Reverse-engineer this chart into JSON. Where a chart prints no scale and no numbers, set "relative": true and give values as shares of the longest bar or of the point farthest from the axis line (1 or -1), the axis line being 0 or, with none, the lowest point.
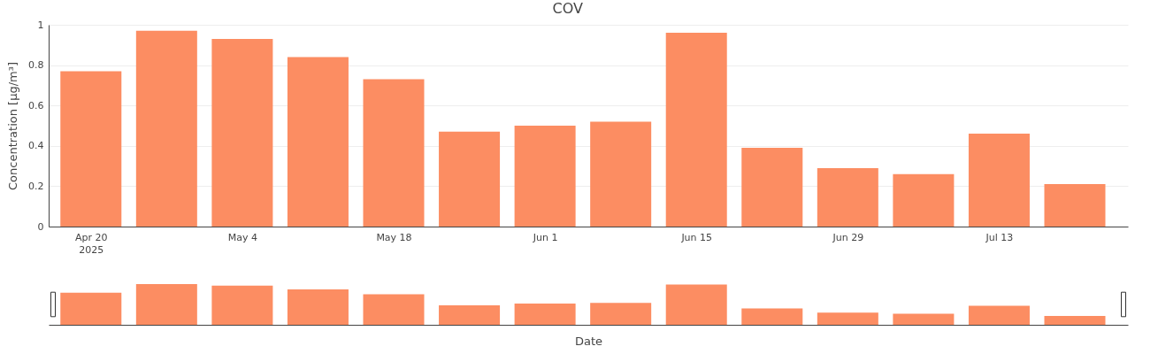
{
  "chart_data": [
    {
      "type": "bar",
      "title": "COV",
      "ylabel": "Concentration [µg/m³]",
      "x": [
        "2025-04-20",
        "2025-04-27",
        "2025-05-04",
        "2025-05-11",
        "2025-05-18",
        "2025-05-25",
        "2025-06-01",
        "2025-06-08",
        "2025-06-15",
        "2025-06-22",
        "2025-06-29",
        "2025-07-06",
        "2025-07-13",
        "2025-07-20"
      ],
      "values": [
        0.77,
        0.97,
        0.93,
        0.84,
        0.73,
        0.47,
        0.5,
        0.52,
        0.96,
        0.39,
        0.29,
        0.26,
        0.46,
        0.21
      ],
      "color": "#fc8d62",
      "xlim": [
        "2025-04-16T12:00",
        "2025-07-24T12:00"
      ],
      "xticks": [
        {
          "value": "2025-04-20",
          "label": "Apr 20\n2025"
        },
        {
          "value": "2025-05-04",
          "label": "May 4"
        },
        {
          "value": "2025-05-18",
          "label": "May 18"
        },
        {
          "value": "2025-06-01",
          "label": "Jun 1"
        },
        {
          "value": "2025-06-15",
          "label": "Jun 15"
        },
        {
          "value": "2025-06-29",
          "label": "Jun 29"
        },
        {
          "value": "2025-07-13",
          "label": "Jul 13"
        }
      ],
      "ylim": [
        0,
        1
      ],
      "yticks": [
        0,
        0.2,
        0.4,
        0.6,
        0.8,
        1
      ],
      "grid": "y",
      "legend": false
    },
    {
      "type": "bar",
      "xlabel": "Date",
      "x": [
        "2025-04-20",
        "2025-04-27",
        "2025-05-04",
        "2025-05-11",
        "2025-05-18",
        "2025-05-25",
        "2025-06-01",
        "2025-06-08",
        "2025-06-15",
        "2025-06-22",
        "2025-06-29",
        "2025-07-06",
        "2025-07-13",
        "2025-07-20"
      ],
      "values": [
        0.79,
        1,
        0.96,
        0.87,
        0.75,
        0.48,
        0.52,
        0.54,
        0.99,
        0.4,
        0.3,
        0.27,
        0.47,
        0.22
      ],
      "color": "#fc8d62",
      "xlim": [
        "2025-04-16T12:00",
        "2025-07-24T12:00"
      ],
      "relative": true,
      "legend": false
    }
  ]
}
